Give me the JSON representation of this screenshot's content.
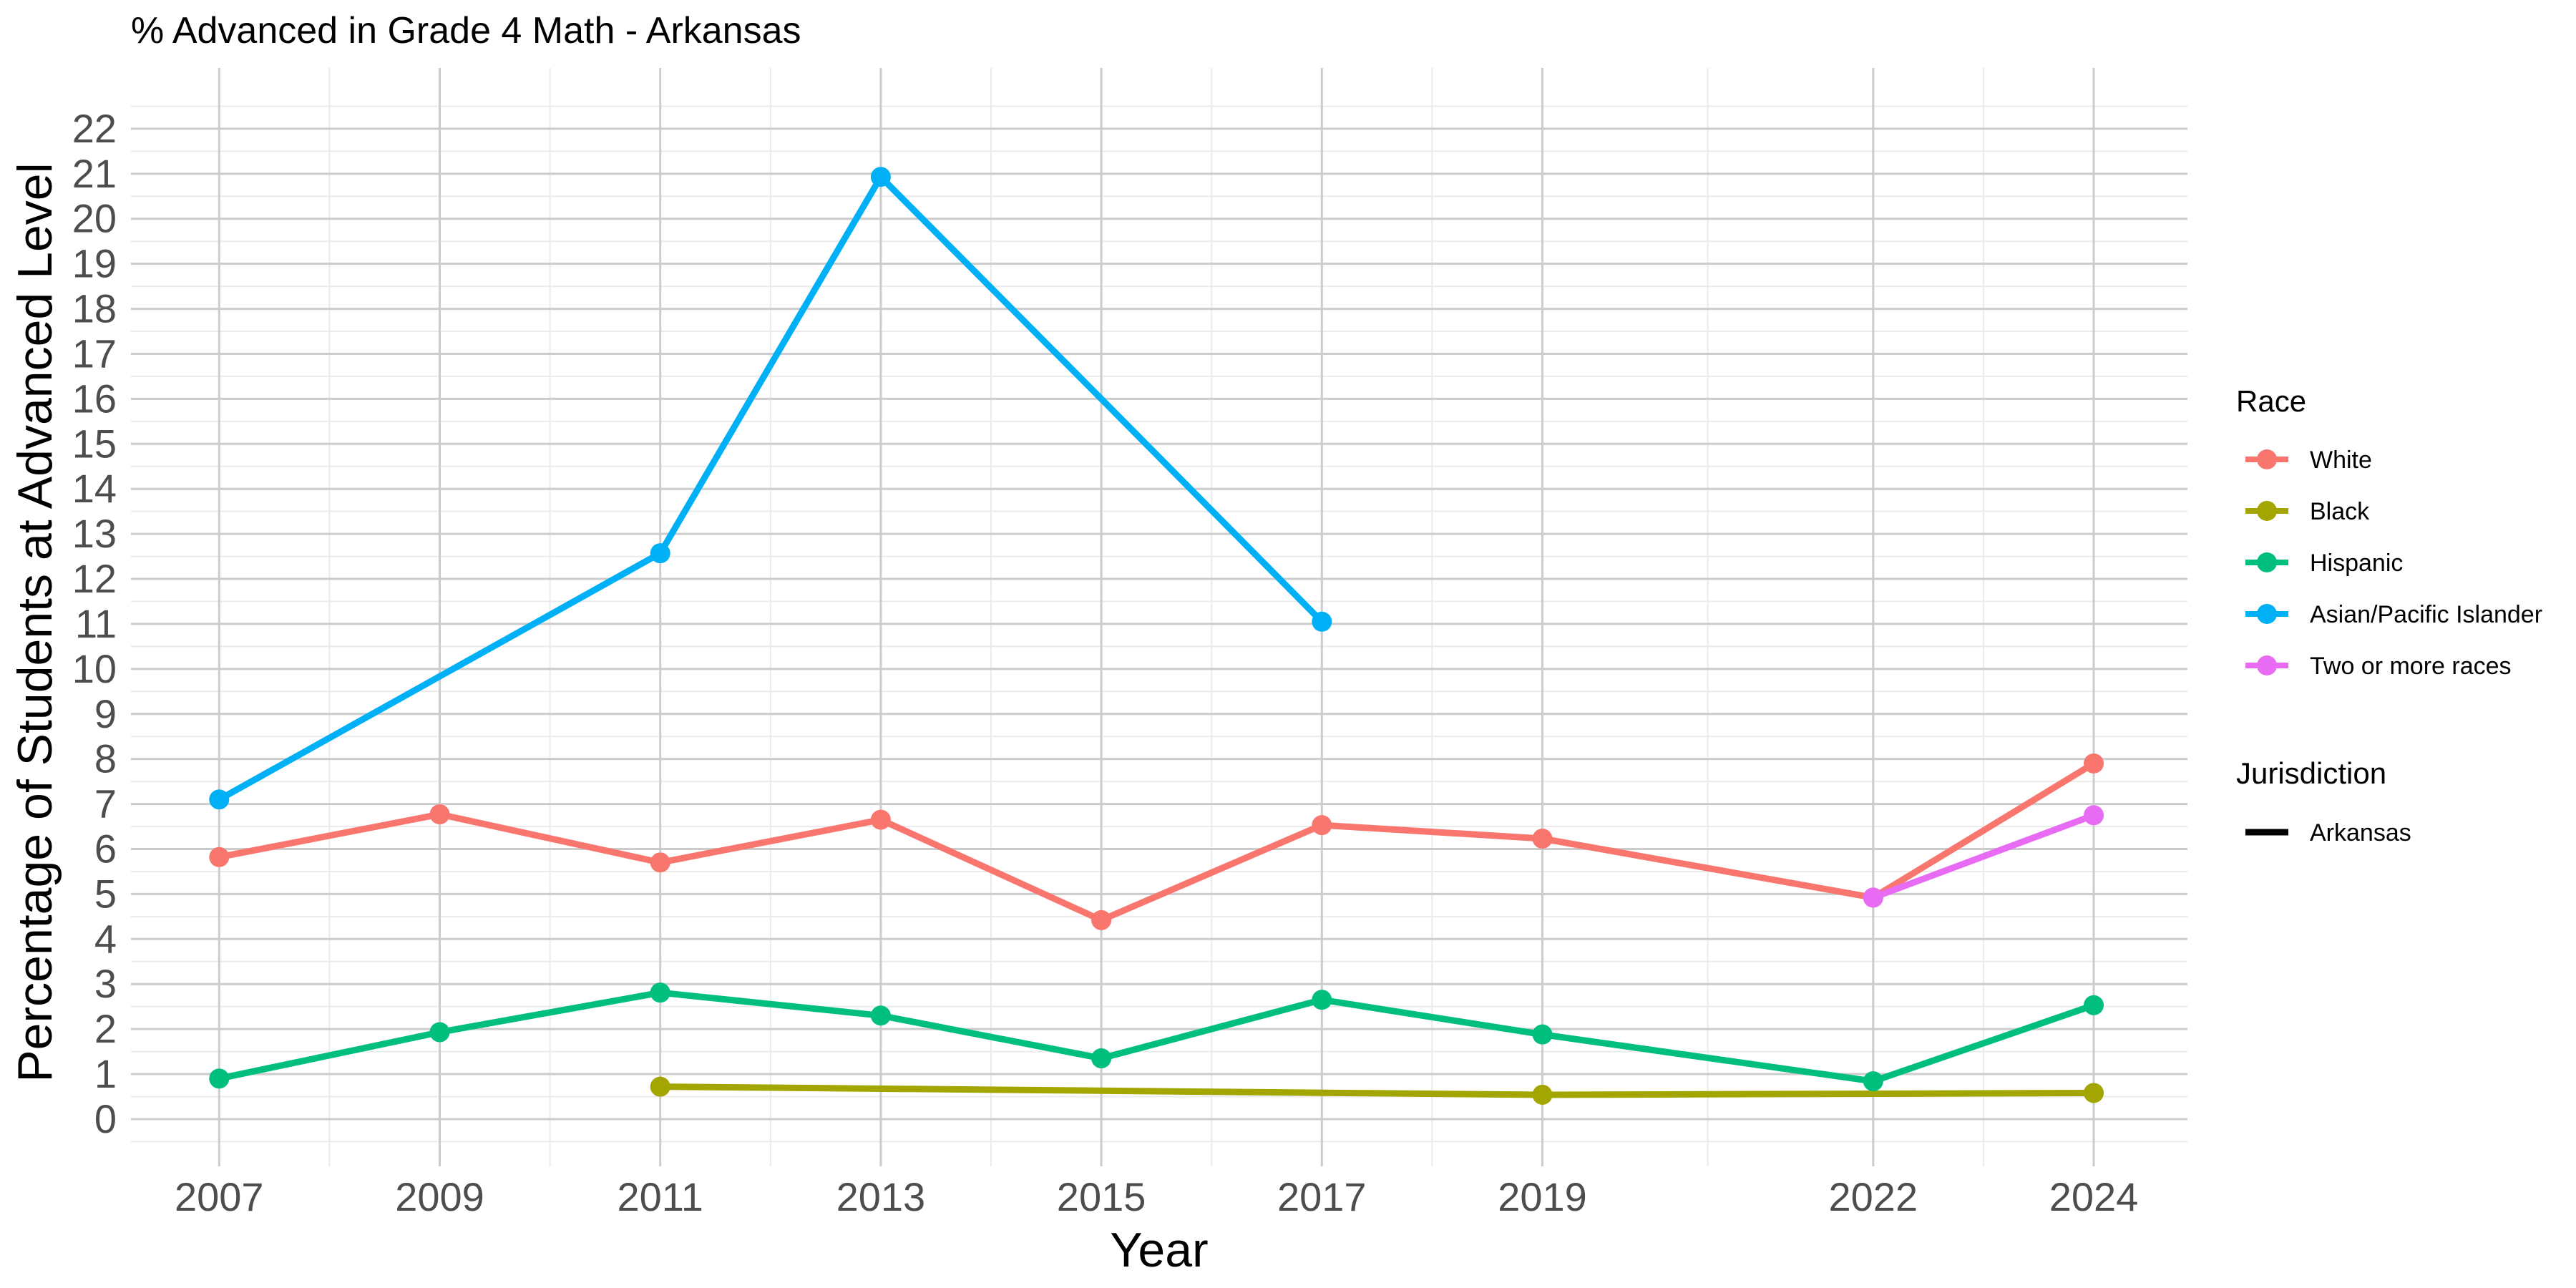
{
  "chart_data": {
    "type": "line",
    "title": "% Advanced in Grade 4 Math - Arkansas",
    "xlabel": "Year",
    "ylabel": "Percentage of Students at Advanced Level",
    "x_ticks": [
      2007,
      2009,
      2011,
      2013,
      2015,
      2017,
      2019,
      2022,
      2024
    ],
    "y_ticks": [
      0,
      1,
      2,
      3,
      4,
      5,
      6,
      7,
      8,
      9,
      10,
      11,
      12,
      13,
      14,
      15,
      16,
      17,
      18,
      19,
      20,
      21,
      22
    ],
    "xlim": [
      2006.2,
      2024.85
    ],
    "ylim": [
      -1.05,
      23.35
    ],
    "grid": true,
    "legend_position": "right",
    "series": [
      {
        "name": "White",
        "color": "#F8766D",
        "marker_points": true,
        "points": [
          [
            2007,
            5.82
          ],
          [
            2009,
            6.77
          ],
          [
            2011,
            5.7
          ],
          [
            2013,
            6.65
          ],
          [
            2015,
            4.42
          ],
          [
            2017,
            6.53
          ],
          [
            2019,
            6.23
          ],
          [
            2022,
            4.92
          ],
          [
            2024,
            7.9
          ]
        ]
      },
      {
        "name": "Black",
        "color": "#A3A500",
        "marker_points": false,
        "points": [
          [
            2011,
            0.72
          ],
          [
            2019,
            0.54
          ],
          [
            2024,
            0.58
          ]
        ],
        "markers": [
          [
            2011,
            0.72
          ],
          [
            2019,
            0.54
          ],
          [
            2024,
            0.58
          ]
        ]
      },
      {
        "name": "Hispanic",
        "color": "#00BF7D",
        "marker_points": true,
        "points": [
          [
            2007,
            0.9
          ],
          [
            2009,
            1.93
          ],
          [
            2011,
            2.81
          ],
          [
            2013,
            2.3
          ],
          [
            2015,
            1.35
          ],
          [
            2017,
            2.65
          ],
          [
            2019,
            1.88
          ],
          [
            2022,
            0.84
          ],
          [
            2024,
            2.53
          ]
        ]
      },
      {
        "name": "Asian/Pacific Islander",
        "color": "#00B0F6",
        "marker_points": false,
        "points": [
          [
            2007,
            7.1
          ],
          [
            2011,
            12.57
          ],
          [
            2013,
            20.93
          ],
          [
            2015,
            16.0
          ],
          [
            2017,
            11.05
          ]
        ],
        "markers": [
          [
            2007,
            7.1
          ],
          [
            2011,
            12.57
          ],
          [
            2013,
            20.93
          ],
          [
            2017,
            11.05
          ]
        ]
      },
      {
        "name": "Two or more races",
        "color": "#E76BF3",
        "marker_points": true,
        "points": [
          [
            2022,
            4.92
          ],
          [
            2024,
            6.75
          ]
        ]
      }
    ],
    "legend": {
      "race_title": "Race",
      "jurisdiction_title": "Jurisdiction",
      "jurisdiction_items": [
        {
          "label": "Arkansas",
          "color": "#000000"
        }
      ]
    }
  }
}
